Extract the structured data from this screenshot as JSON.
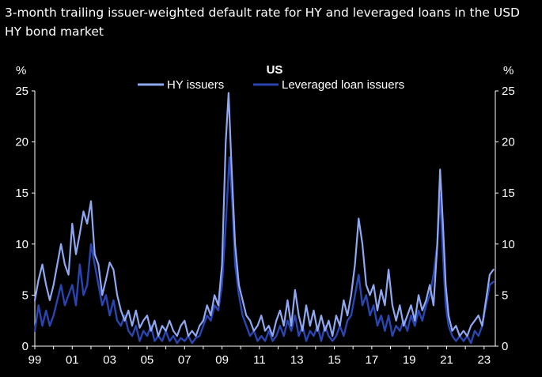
{
  "chart_data": {
    "type": "line",
    "title": "3-month trailing issuer-weighted default rate for HY and leveraged loans in the USD HY bond market",
    "subtitle": "US",
    "ylabel_left": "%",
    "ylabel_right": "%",
    "ylim": [
      0,
      25
    ],
    "yticks": [
      "0",
      "5",
      "10",
      "15",
      "20",
      "25"
    ],
    "xlim": [
      1999,
      2023.6
    ],
    "xticks": [
      {
        "value": 1999,
        "label": "99"
      },
      {
        "value": 2001,
        "label": "01"
      },
      {
        "value": 2003,
        "label": "03"
      },
      {
        "value": 2005,
        "label": "05"
      },
      {
        "value": 2007,
        "label": "07"
      },
      {
        "value": 2009,
        "label": "09"
      },
      {
        "value": 2011,
        "label": "11"
      },
      {
        "value": 2013,
        "label": "13"
      },
      {
        "value": 2015,
        "label": "15"
      },
      {
        "value": 2017,
        "label": "17"
      },
      {
        "value": 2019,
        "label": "19"
      },
      {
        "value": 2021,
        "label": "21"
      },
      {
        "value": 2023,
        "label": "23"
      }
    ],
    "series": [
      {
        "name": "HY issuers",
        "color": "#8fa8f0",
        "points": [
          [
            1999.0,
            4.5
          ],
          [
            1999.2,
            6.5
          ],
          [
            1999.4,
            8.0
          ],
          [
            1999.6,
            6.0
          ],
          [
            1999.8,
            4.5
          ],
          [
            2000.0,
            6.0
          ],
          [
            2000.2,
            8.0
          ],
          [
            2000.4,
            10.0
          ],
          [
            2000.6,
            8.0
          ],
          [
            2000.8,
            7.0
          ],
          [
            2001.0,
            12.0
          ],
          [
            2001.2,
            9.0
          ],
          [
            2001.4,
            11.0
          ],
          [
            2001.6,
            13.2
          ],
          [
            2001.8,
            12.0
          ],
          [
            2002.0,
            14.2
          ],
          [
            2002.2,
            9.0
          ],
          [
            2002.4,
            8.0
          ],
          [
            2002.6,
            5.0
          ],
          [
            2002.8,
            6.5
          ],
          [
            2003.0,
            8.2
          ],
          [
            2003.2,
            7.5
          ],
          [
            2003.4,
            5.0
          ],
          [
            2003.6,
            3.5
          ],
          [
            2003.8,
            2.5
          ],
          [
            2004.0,
            3.5
          ],
          [
            2004.2,
            2.0
          ],
          [
            2004.4,
            3.5
          ],
          [
            2004.6,
            1.8
          ],
          [
            2004.8,
            2.5
          ],
          [
            2005.0,
            3.0
          ],
          [
            2005.2,
            1.5
          ],
          [
            2005.4,
            2.5
          ],
          [
            2005.6,
            1.0
          ],
          [
            2005.8,
            2.0
          ],
          [
            2006.0,
            1.5
          ],
          [
            2006.2,
            2.5
          ],
          [
            2006.4,
            1.5
          ],
          [
            2006.6,
            1.0
          ],
          [
            2006.8,
            2.0
          ],
          [
            2007.0,
            2.5
          ],
          [
            2007.2,
            1.0
          ],
          [
            2007.4,
            1.5
          ],
          [
            2007.6,
            1.0
          ],
          [
            2007.8,
            2.0
          ],
          [
            2008.0,
            2.5
          ],
          [
            2008.2,
            4.0
          ],
          [
            2008.4,
            3.0
          ],
          [
            2008.6,
            5.0
          ],
          [
            2008.8,
            4.0
          ],
          [
            2009.0,
            8.0
          ],
          [
            2009.2,
            20.0
          ],
          [
            2009.35,
            24.8
          ],
          [
            2009.5,
            18.0
          ],
          [
            2009.7,
            10.0
          ],
          [
            2009.9,
            6.0
          ],
          [
            2010.1,
            4.5
          ],
          [
            2010.3,
            3.0
          ],
          [
            2010.5,
            2.5
          ],
          [
            2010.7,
            1.5
          ],
          [
            2010.9,
            2.0
          ],
          [
            2011.1,
            3.0
          ],
          [
            2011.3,
            1.5
          ],
          [
            2011.5,
            2.0
          ],
          [
            2011.7,
            1.0
          ],
          [
            2011.9,
            2.5
          ],
          [
            2012.1,
            3.5
          ],
          [
            2012.3,
            2.0
          ],
          [
            2012.5,
            4.5
          ],
          [
            2012.7,
            2.0
          ],
          [
            2012.9,
            5.5
          ],
          [
            2013.1,
            3.0
          ],
          [
            2013.3,
            1.5
          ],
          [
            2013.5,
            4.0
          ],
          [
            2013.7,
            2.0
          ],
          [
            2013.9,
            3.5
          ],
          [
            2014.1,
            1.5
          ],
          [
            2014.3,
            3.0
          ],
          [
            2014.5,
            1.5
          ],
          [
            2014.7,
            2.5
          ],
          [
            2014.9,
            1.0
          ],
          [
            2015.1,
            3.0
          ],
          [
            2015.3,
            2.0
          ],
          [
            2015.5,
            4.5
          ],
          [
            2015.7,
            3.0
          ],
          [
            2015.9,
            5.0
          ],
          [
            2016.1,
            8.0
          ],
          [
            2016.3,
            12.5
          ],
          [
            2016.5,
            10.0
          ],
          [
            2016.7,
            6.0
          ],
          [
            2016.9,
            5.0
          ],
          [
            2017.1,
            6.0
          ],
          [
            2017.3,
            3.5
          ],
          [
            2017.5,
            5.5
          ],
          [
            2017.7,
            4.0
          ],
          [
            2017.9,
            7.5
          ],
          [
            2018.1,
            4.0
          ],
          [
            2018.3,
            2.5
          ],
          [
            2018.5,
            4.0
          ],
          [
            2018.7,
            2.0
          ],
          [
            2018.9,
            3.0
          ],
          [
            2019.1,
            4.0
          ],
          [
            2019.3,
            2.5
          ],
          [
            2019.5,
            5.0
          ],
          [
            2019.7,
            3.5
          ],
          [
            2019.9,
            4.5
          ],
          [
            2020.1,
            6.0
          ],
          [
            2020.3,
            4.0
          ],
          [
            2020.5,
            10.0
          ],
          [
            2020.65,
            17.3
          ],
          [
            2020.8,
            12.0
          ],
          [
            2020.95,
            6.0
          ],
          [
            2021.1,
            3.0
          ],
          [
            2021.3,
            1.5
          ],
          [
            2021.5,
            2.0
          ],
          [
            2021.7,
            1.0
          ],
          [
            2021.9,
            1.5
          ],
          [
            2022.1,
            1.0
          ],
          [
            2022.3,
            2.0
          ],
          [
            2022.5,
            2.5
          ],
          [
            2022.7,
            3.0
          ],
          [
            2022.9,
            2.0
          ],
          [
            2023.1,
            4.5
          ],
          [
            2023.3,
            7.0
          ],
          [
            2023.5,
            7.5
          ]
        ]
      },
      {
        "name": "Leveraged loan issuers",
        "color": "#2a44b0",
        "points": [
          [
            1999.0,
            1.5
          ],
          [
            1999.2,
            4.0
          ],
          [
            1999.4,
            2.0
          ],
          [
            1999.6,
            3.5
          ],
          [
            1999.8,
            2.0
          ],
          [
            2000.0,
            3.0
          ],
          [
            2000.2,
            4.5
          ],
          [
            2000.4,
            6.0
          ],
          [
            2000.6,
            4.0
          ],
          [
            2000.8,
            5.0
          ],
          [
            2001.0,
            6.0
          ],
          [
            2001.2,
            4.0
          ],
          [
            2001.4,
            8.0
          ],
          [
            2001.6,
            5.0
          ],
          [
            2001.8,
            6.0
          ],
          [
            2002.0,
            10.0
          ],
          [
            2002.2,
            8.0
          ],
          [
            2002.4,
            6.0
          ],
          [
            2002.6,
            4.0
          ],
          [
            2002.8,
            5.0
          ],
          [
            2003.0,
            3.0
          ],
          [
            2003.2,
            4.5
          ],
          [
            2003.4,
            2.5
          ],
          [
            2003.6,
            2.0
          ],
          [
            2003.8,
            3.0
          ],
          [
            2004.0,
            1.5
          ],
          [
            2004.2,
            1.0
          ],
          [
            2004.4,
            2.0
          ],
          [
            2004.6,
            0.5
          ],
          [
            2004.8,
            1.5
          ],
          [
            2005.0,
            1.0
          ],
          [
            2005.2,
            2.0
          ],
          [
            2005.4,
            0.5
          ],
          [
            2005.6,
            1.0
          ],
          [
            2005.8,
            0.5
          ],
          [
            2006.0,
            1.5
          ],
          [
            2006.2,
            0.5
          ],
          [
            2006.4,
            1.0
          ],
          [
            2006.6,
            0.3
          ],
          [
            2006.8,
            0.8
          ],
          [
            2007.0,
            0.5
          ],
          [
            2007.2,
            1.0
          ],
          [
            2007.4,
            0.3
          ],
          [
            2007.6,
            0.8
          ],
          [
            2007.8,
            1.0
          ],
          [
            2008.0,
            2.0
          ],
          [
            2008.2,
            3.0
          ],
          [
            2008.4,
            2.5
          ],
          [
            2008.6,
            4.0
          ],
          [
            2008.8,
            3.5
          ],
          [
            2009.0,
            6.0
          ],
          [
            2009.2,
            12.0
          ],
          [
            2009.4,
            18.5
          ],
          [
            2009.55,
            14.0
          ],
          [
            2009.7,
            8.0
          ],
          [
            2009.9,
            5.0
          ],
          [
            2010.1,
            3.0
          ],
          [
            2010.3,
            2.0
          ],
          [
            2010.5,
            1.0
          ],
          [
            2010.7,
            1.5
          ],
          [
            2010.9,
            0.5
          ],
          [
            2011.1,
            1.0
          ],
          [
            2011.3,
            0.5
          ],
          [
            2011.5,
            1.5
          ],
          [
            2011.7,
            0.5
          ],
          [
            2011.9,
            1.0
          ],
          [
            2012.1,
            2.0
          ],
          [
            2012.3,
            1.0
          ],
          [
            2012.5,
            2.5
          ],
          [
            2012.7,
            1.5
          ],
          [
            2012.9,
            3.0
          ],
          [
            2013.1,
            1.0
          ],
          [
            2013.3,
            2.0
          ],
          [
            2013.5,
            0.5
          ],
          [
            2013.7,
            1.5
          ],
          [
            2013.9,
            1.0
          ],
          [
            2014.1,
            2.0
          ],
          [
            2014.3,
            0.5
          ],
          [
            2014.5,
            2.0
          ],
          [
            2014.7,
            1.0
          ],
          [
            2014.9,
            0.5
          ],
          [
            2015.1,
            1.0
          ],
          [
            2015.3,
            2.0
          ],
          [
            2015.5,
            1.0
          ],
          [
            2015.7,
            2.5
          ],
          [
            2015.9,
            3.0
          ],
          [
            2016.1,
            5.0
          ],
          [
            2016.3,
            7.0
          ],
          [
            2016.5,
            4.0
          ],
          [
            2016.7,
            5.0
          ],
          [
            2016.9,
            3.0
          ],
          [
            2017.1,
            4.0
          ],
          [
            2017.3,
            2.0
          ],
          [
            2017.5,
            3.0
          ],
          [
            2017.7,
            1.5
          ],
          [
            2017.9,
            3.0
          ],
          [
            2018.1,
            1.0
          ],
          [
            2018.3,
            2.0
          ],
          [
            2018.5,
            1.5
          ],
          [
            2018.7,
            2.5
          ],
          [
            2018.9,
            1.5
          ],
          [
            2019.1,
            3.0
          ],
          [
            2019.3,
            2.0
          ],
          [
            2019.5,
            3.5
          ],
          [
            2019.7,
            2.5
          ],
          [
            2019.9,
            4.0
          ],
          [
            2020.1,
            5.0
          ],
          [
            2020.3,
            7.0
          ],
          [
            2020.5,
            10.0
          ],
          [
            2020.65,
            14.8
          ],
          [
            2020.8,
            9.0
          ],
          [
            2020.95,
            4.0
          ],
          [
            2021.1,
            2.0
          ],
          [
            2021.3,
            1.0
          ],
          [
            2021.5,
            0.5
          ],
          [
            2021.7,
            1.0
          ],
          [
            2021.9,
            0.5
          ],
          [
            2022.1,
            1.0
          ],
          [
            2022.3,
            0.3
          ],
          [
            2022.5,
            1.5
          ],
          [
            2022.7,
            1.0
          ],
          [
            2022.9,
            2.0
          ],
          [
            2023.1,
            4.0
          ],
          [
            2023.3,
            6.0
          ],
          [
            2023.5,
            6.3
          ]
        ]
      }
    ]
  }
}
